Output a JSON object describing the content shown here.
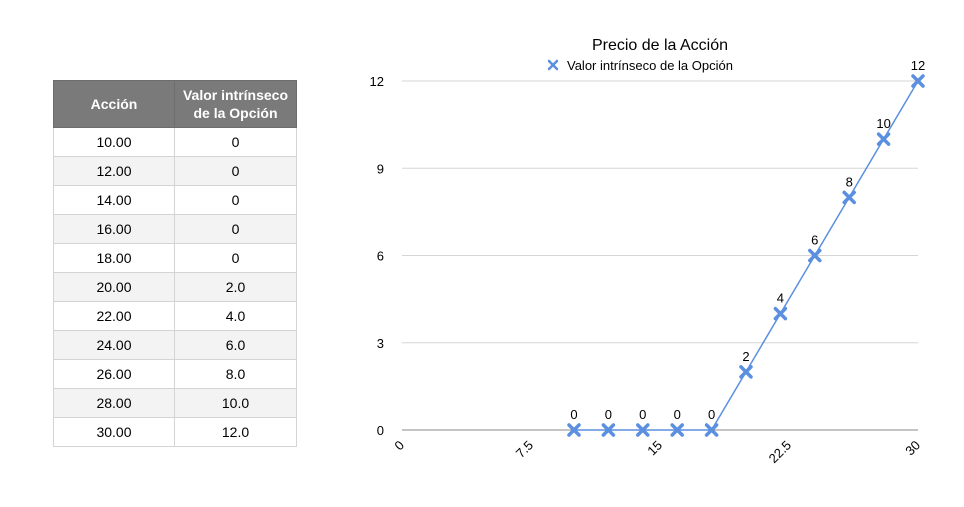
{
  "table": {
    "headers": [
      "Acción",
      "Valor intrínseco de la Opción"
    ],
    "rows": [
      [
        "10.00",
        "0"
      ],
      [
        "12.00",
        "0"
      ],
      [
        "14.00",
        "0"
      ],
      [
        "16.00",
        "0"
      ],
      [
        "18.00",
        "0"
      ],
      [
        "20.00",
        "2.0"
      ],
      [
        "22.00",
        "4.0"
      ],
      [
        "24.00",
        "6.0"
      ],
      [
        "26.00",
        "8.0"
      ],
      [
        "28.00",
        "10.0"
      ],
      [
        "30.00",
        "12.0"
      ]
    ]
  },
  "chart_data": {
    "type": "line",
    "title": "Precio de la Acción",
    "xlabel": "",
    "ylabel": "",
    "xlim": [
      0,
      30
    ],
    "ylim": [
      0,
      12
    ],
    "x_ticks": [
      0,
      7.5,
      15,
      22.5,
      30
    ],
    "y_ticks": [
      0,
      3,
      6,
      9,
      12
    ],
    "grid": "horizontal",
    "legend": "top-center",
    "series": [
      {
        "name": "Valor intrínseco de la Opción",
        "color": "#5b8fe0",
        "marker": "x",
        "x": [
          10,
          12,
          14,
          16,
          18,
          20,
          22,
          24,
          26,
          28,
          30
        ],
        "y": [
          0,
          0,
          0,
          0,
          0,
          2,
          4,
          6,
          8,
          10,
          12
        ],
        "labels": [
          "0",
          "0",
          "0",
          "0",
          "0",
          "2",
          "4",
          "6",
          "8",
          "10",
          "12"
        ]
      }
    ]
  }
}
